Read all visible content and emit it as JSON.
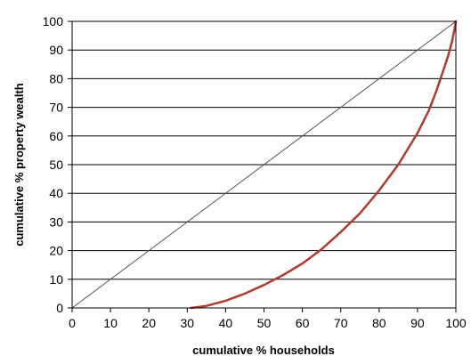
{
  "chart_data": {
    "type": "line",
    "title": "",
    "xlabel": "cumulative % households",
    "ylabel": "cumulative % property wealth",
    "xlim": [
      0,
      100
    ],
    "ylim": [
      0,
      100
    ],
    "x_ticks": [
      0,
      10,
      20,
      30,
      40,
      50,
      60,
      70,
      80,
      90,
      100
    ],
    "y_ticks": [
      0,
      10,
      20,
      30,
      40,
      50,
      60,
      70,
      80,
      90,
      100
    ],
    "grid": "horizontal",
    "legend": "none",
    "series": [
      {
        "x": [
          0,
          100
        ],
        "y": [
          0,
          100
        ],
        "color": "#555555"
      },
      {
        "x": [
          31,
          35,
          40,
          45,
          50,
          55,
          60,
          65,
          70,
          75,
          80,
          85,
          90,
          93,
          95,
          97,
          98,
          99,
          99.6,
          100
        ],
        "y": [
          0,
          0.7,
          2.5,
          5,
          8,
          11.5,
          15.5,
          20.5,
          26.5,
          33,
          41,
          50,
          61,
          69,
          76,
          84,
          88,
          93,
          97,
          100
        ],
        "color": "#b03a2e"
      }
    ]
  }
}
